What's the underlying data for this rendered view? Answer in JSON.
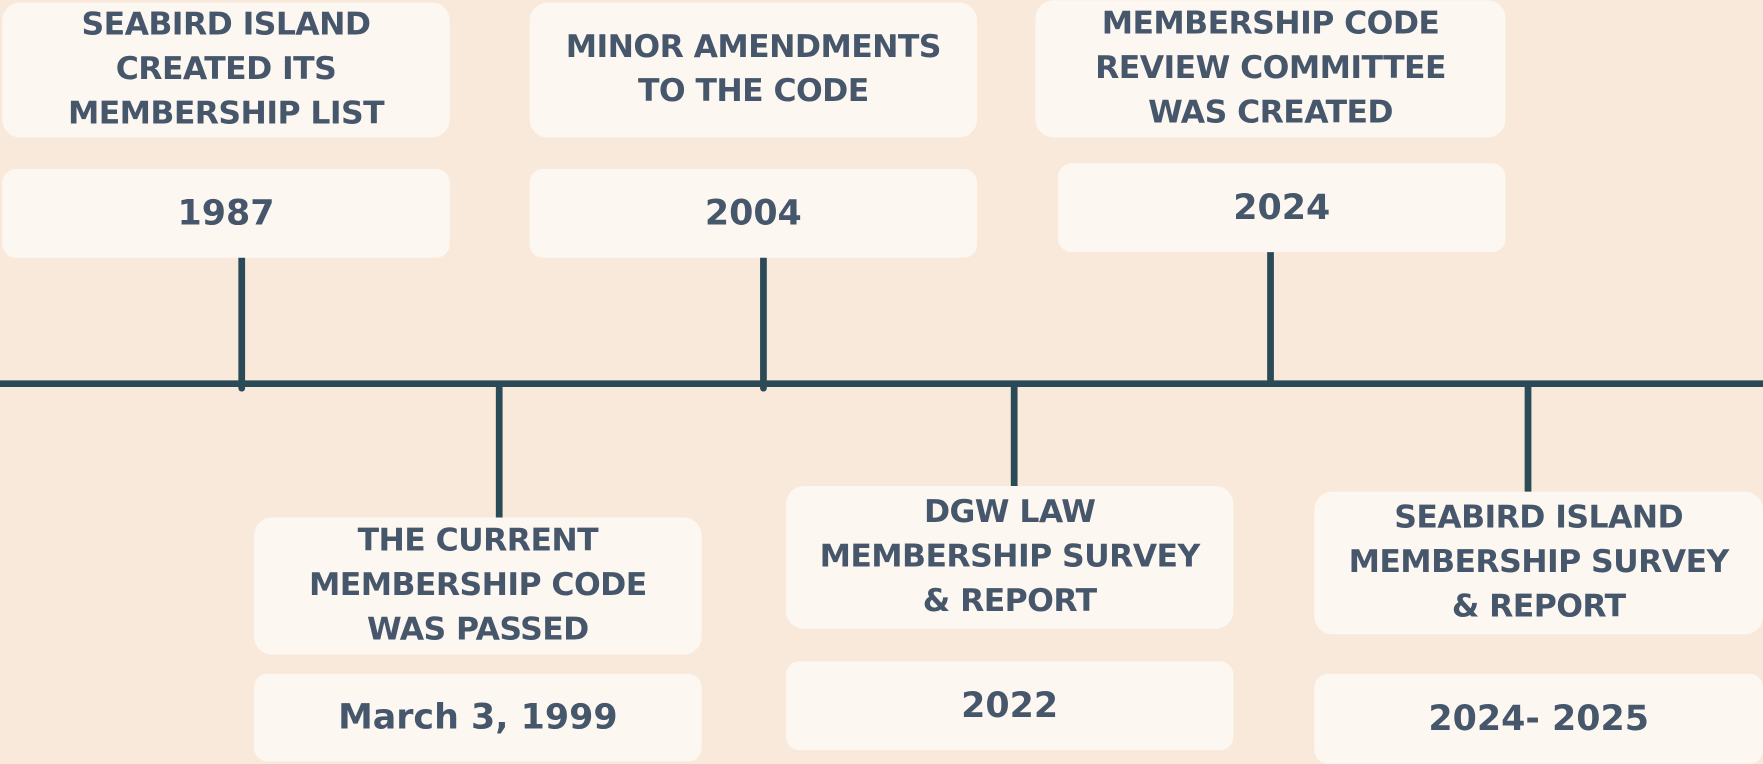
{
  "events": [
    {
      "title": [
        "SEABIRD ISLAND",
        "CREATED ITS",
        "MEMBERSHIP LIST"
      ],
      "date": "1987"
    },
    {
      "title": [
        "THE CURRENT",
        "MEMBERSHIP CODE",
        "WAS PASSED"
      ],
      "date": "March 3, 1999"
    },
    {
      "title": [
        "MINOR AMENDMENTS",
        "TO THE CODE"
      ],
      "date": "2004"
    },
    {
      "title": [
        "DGW LAW",
        "MEMBERSHIP SURVEY",
        "& REPORT"
      ],
      "date": "2022"
    },
    {
      "title": [
        "MEMBERSHIP CODE",
        "REVIEW COMMITTEE",
        "WAS CREATED"
      ],
      "date": "2024"
    },
    {
      "title": [
        "SEABIRD ISLAND",
        "MEMBERSHIP SURVEY",
        "& REPORT"
      ],
      "date": "2024- 2025"
    }
  ]
}
